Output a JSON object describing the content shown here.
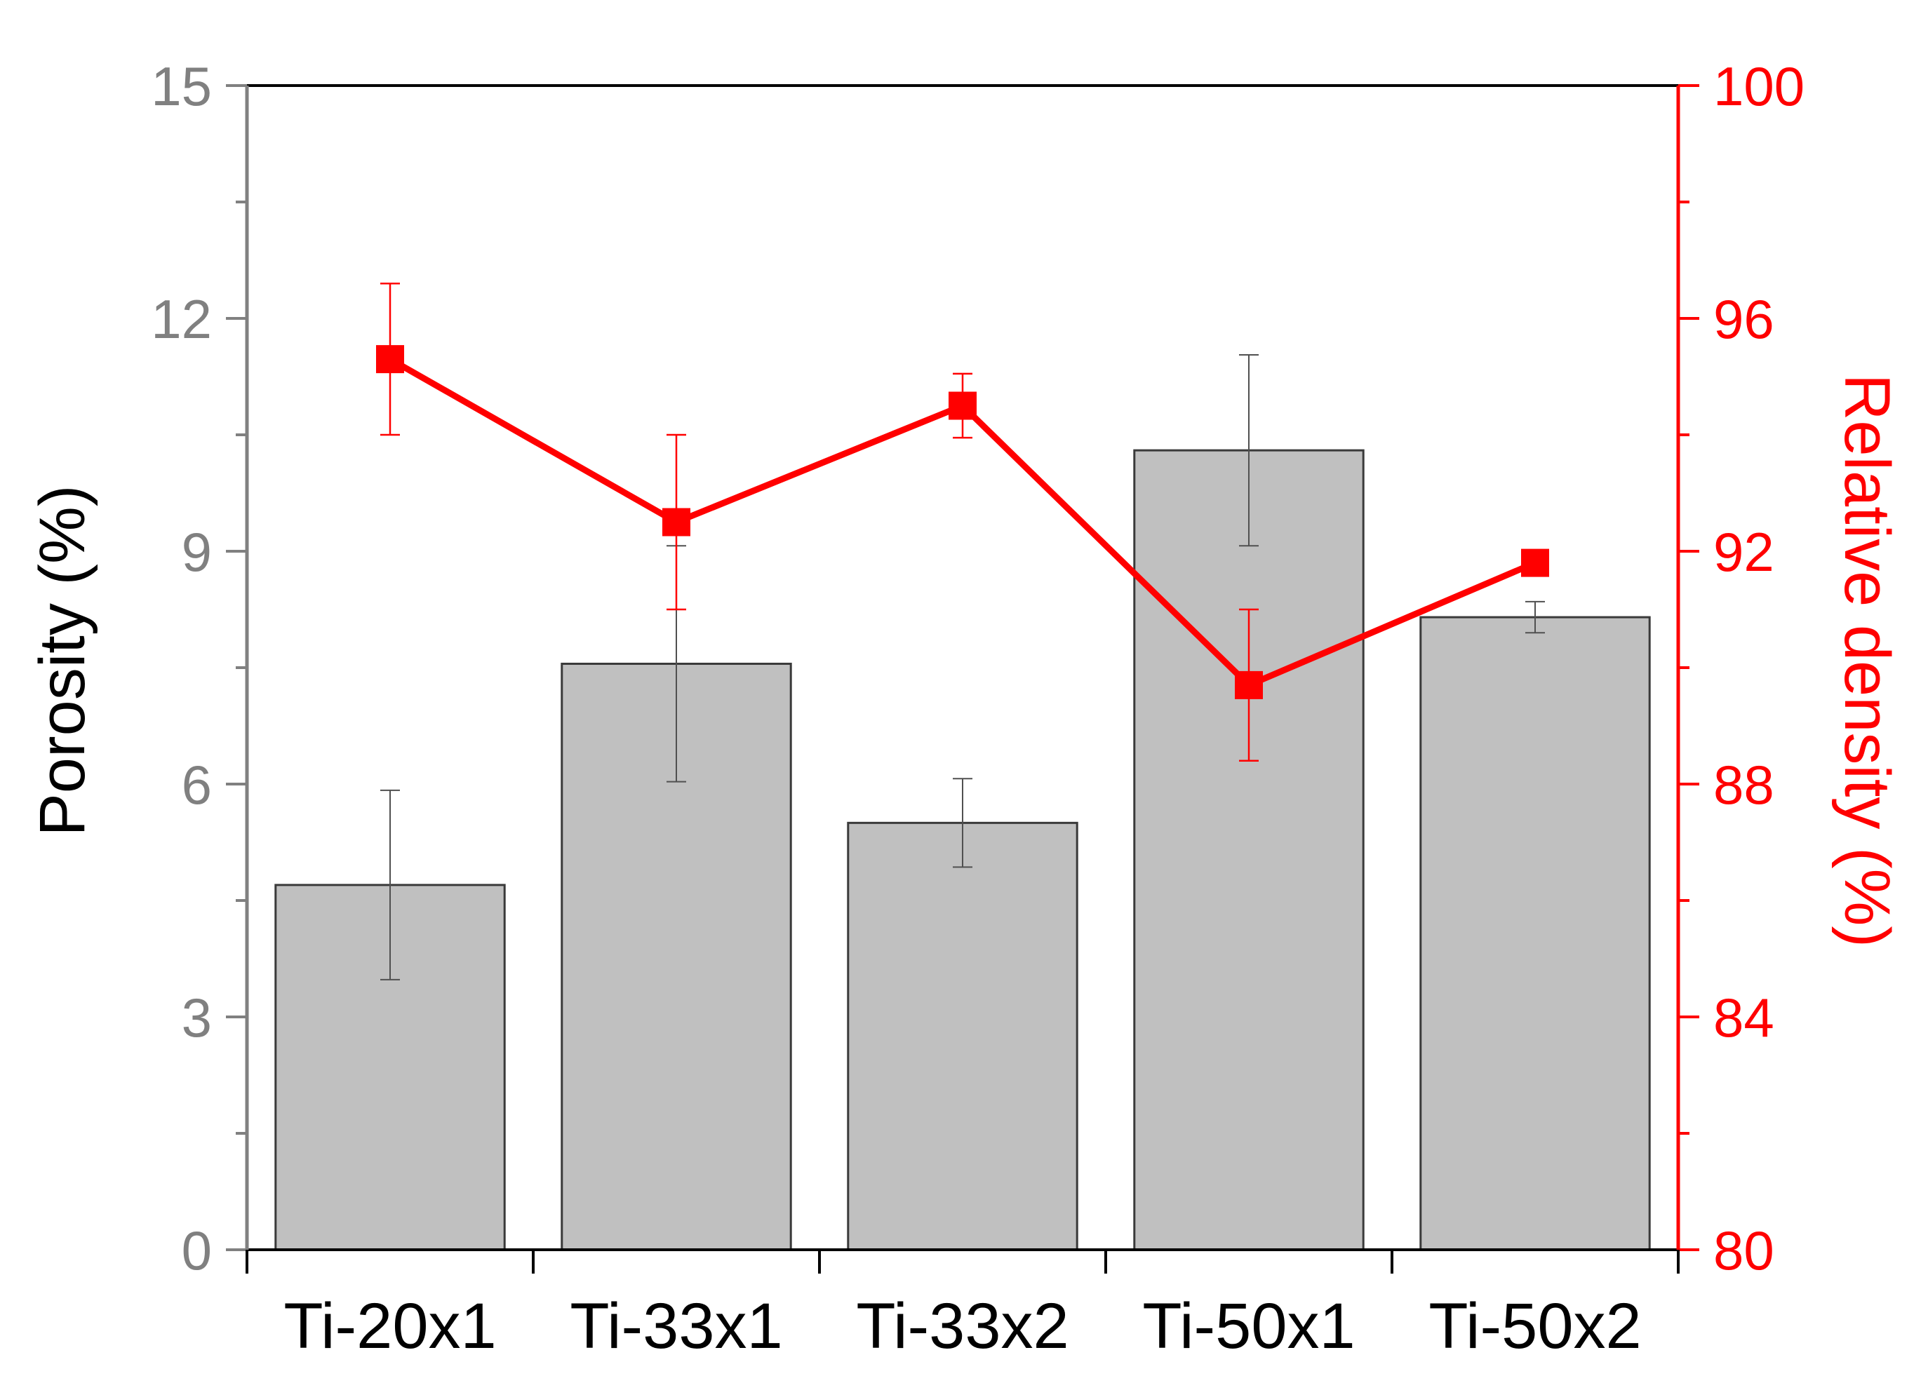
{
  "chart_data": {
    "type": "bar",
    "categories": [
      "Ti-20x1",
      "Ti-33x1",
      "Ti-33x2",
      "Ti-50x1",
      "Ti-50x2"
    ],
    "ylabel": "Porosity (%)",
    "ylabel_right": "Relative density (%)",
    "ylim": [
      0,
      15
    ],
    "ylim_right": [
      80,
      100
    ],
    "yticks": [
      0,
      3,
      6,
      9,
      12,
      15
    ],
    "yticks_right": [
      80,
      84,
      88,
      92,
      96,
      100
    ],
    "series": [
      {
        "type": "bar",
        "axis": "left",
        "values": [
          4.7,
          7.55,
          5.5,
          10.3,
          8.15
        ],
        "error": [
          1.22,
          1.52,
          0.57,
          1.23,
          0.2
        ]
      },
      {
        "type": "line",
        "axis": "right",
        "values": [
          95.3,
          92.5,
          94.5,
          89.7,
          91.8
        ],
        "error": [
          1.3,
          1.5,
          0.55,
          1.3,
          0.0
        ]
      }
    ],
    "colors": {
      "bar_fill": "#c0c0c0",
      "bar_stroke": "#3a3a3a",
      "line": "#ff0000",
      "left_axis": "#808080",
      "right_axis": "#ff0000",
      "frame": "#000000"
    },
    "grid": false
  }
}
